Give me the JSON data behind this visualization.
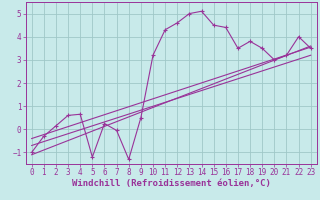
{
  "xlabel": "Windchill (Refroidissement éolien,°C)",
  "bg_color": "#c8eaea",
  "line_color": "#993399",
  "xlim": [
    -0.5,
    23.5
  ],
  "ylim": [
    -1.5,
    5.5
  ],
  "xticks": [
    0,
    1,
    2,
    3,
    4,
    5,
    6,
    7,
    8,
    9,
    10,
    11,
    12,
    13,
    14,
    15,
    16,
    17,
    18,
    19,
    20,
    21,
    22,
    23
  ],
  "yticks": [
    -1,
    0,
    1,
    2,
    3,
    4,
    5
  ],
  "data_x": [
    0,
    1,
    2,
    3,
    4,
    5,
    6,
    7,
    8,
    9,
    10,
    11,
    12,
    13,
    14,
    15,
    16,
    17,
    18,
    19,
    20,
    21,
    22,
    23
  ],
  "data_y": [
    -1.0,
    -0.3,
    0.15,
    0.6,
    0.65,
    -1.2,
    0.25,
    -0.05,
    -1.3,
    0.5,
    3.2,
    4.3,
    4.6,
    5.0,
    5.1,
    4.5,
    4.4,
    3.5,
    3.8,
    3.5,
    3.0,
    3.2,
    4.0,
    3.5
  ],
  "line1_x": [
    0,
    23
  ],
  "line1_y": [
    -1.1,
    3.6
  ],
  "line2_x": [
    0,
    23
  ],
  "line2_y": [
    -0.7,
    3.2
  ],
  "line3_x": [
    0,
    23
  ],
  "line3_y": [
    -0.4,
    3.55
  ],
  "grid_color": "#a0c8c8",
  "font_color": "#993399",
  "tick_fontsize": 5.5,
  "label_fontsize": 6.5
}
